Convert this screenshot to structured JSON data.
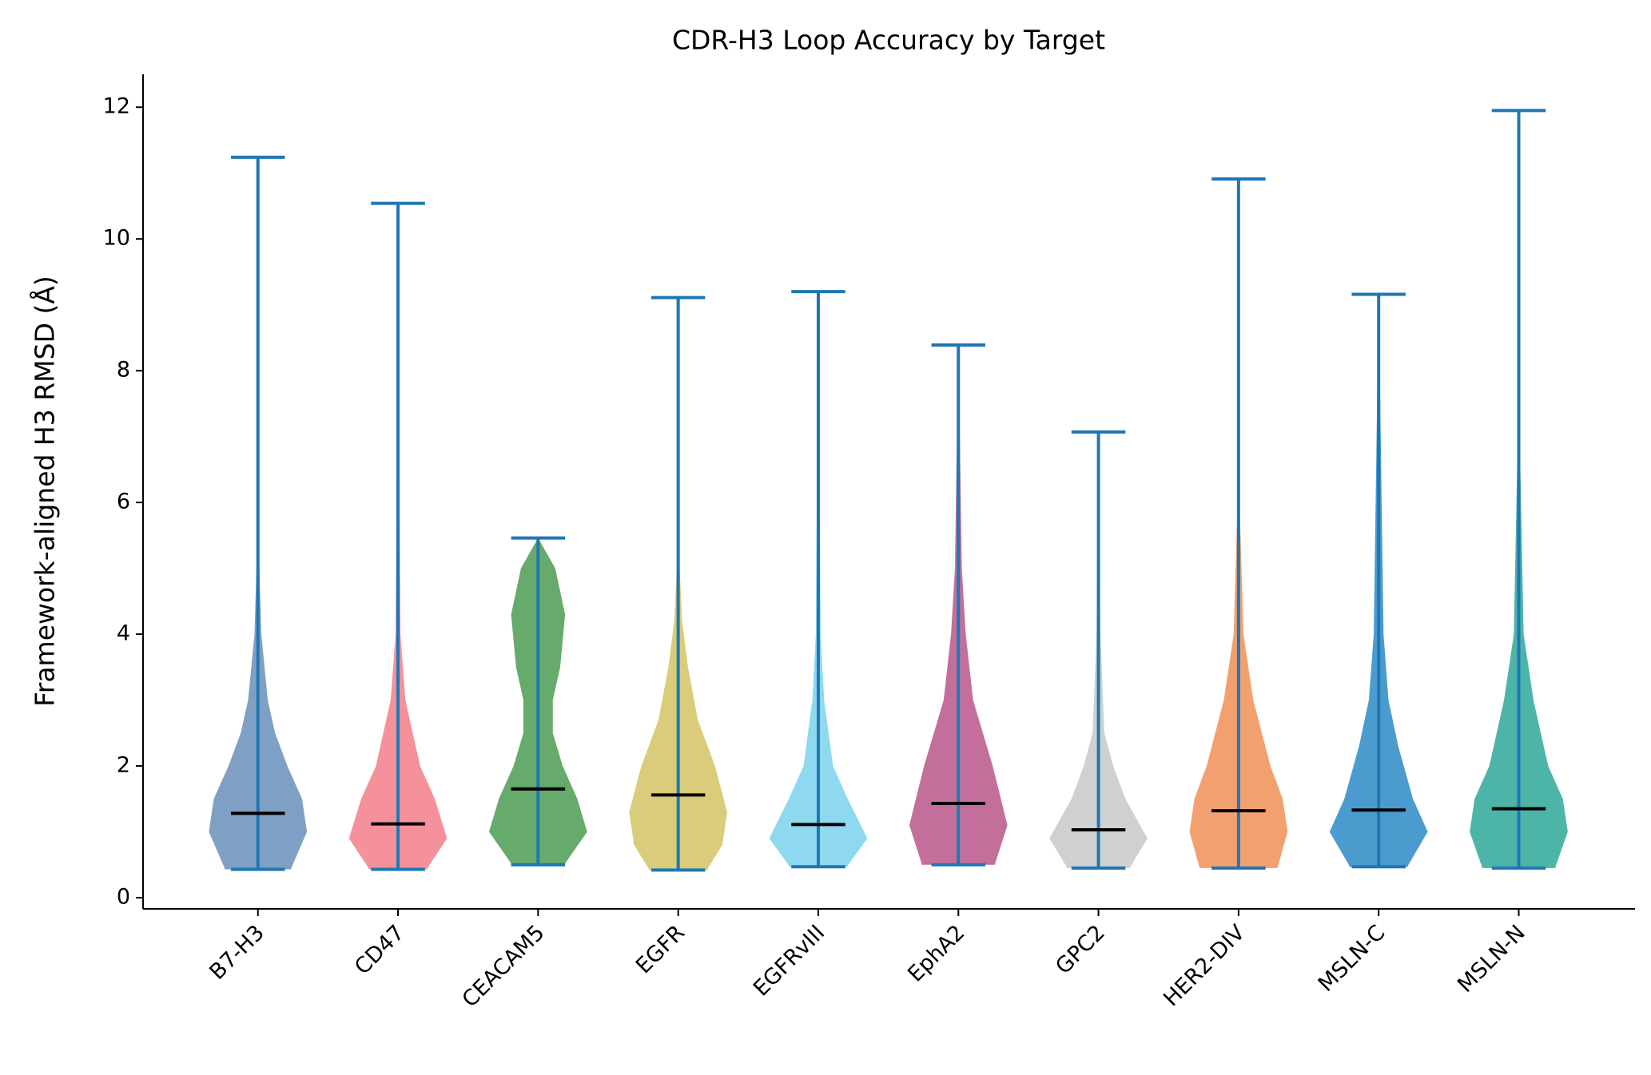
{
  "chart_data": {
    "type": "violin",
    "title": "CDR-H3 Loop Accuracy by Target",
    "y_label": "Framework-aligned H3 RMSD (Å)",
    "categories": [
      "B7-H3",
      "CD47",
      "CEACAM5",
      "EGFR",
      "EGFRvIII",
      "EphA2",
      "GPC2",
      "HER2-DIV",
      "MSLN-C",
      "MSLN-N"
    ],
    "colors": [
      "#7fa0c4",
      "#f4919b",
      "#66aa6c",
      "#dacc7a",
      "#8fd9f0",
      "#c46f9b",
      "#d0d0d0",
      "#f3a070",
      "#4b9bcf",
      "#4db5a8"
    ],
    "min": [
      0.43,
      0.43,
      0.5,
      0.42,
      0.47,
      0.5,
      0.45,
      0.45,
      0.47,
      0.45
    ],
    "max": [
      11.24,
      10.54,
      5.46,
      9.11,
      9.2,
      8.39,
      7.07,
      10.91,
      9.16,
      11.95
    ],
    "median": [
      1.28,
      1.12,
      1.65,
      1.56,
      1.11,
      1.43,
      1.03,
      1.32,
      1.33,
      1.35
    ],
    "profiles": [
      {
        "y": [
          0.45,
          1.0,
          1.5,
          2.0,
          2.5,
          3.0,
          4.0,
          5.0,
          7.0
        ],
        "w": [
          0.68,
          1.0,
          0.9,
          0.6,
          0.35,
          0.2,
          0.07,
          0.03,
          0.01
        ]
      },
      {
        "y": [
          0.45,
          0.9,
          1.5,
          2.0,
          3.0,
          4.0,
          7.0
        ],
        "w": [
          0.6,
          1.0,
          0.75,
          0.45,
          0.15,
          0.05,
          0.02
        ]
      },
      {
        "y": [
          0.52,
          1.0,
          1.5,
          2.0,
          2.5,
          3.0,
          3.5,
          4.3,
          5.0
        ],
        "w": [
          0.55,
          1.0,
          0.8,
          0.5,
          0.3,
          0.3,
          0.45,
          0.55,
          0.35
        ]
      },
      {
        "y": [
          0.44,
          0.8,
          1.3,
          2.0,
          2.7,
          3.5,
          4.2,
          5.0
        ],
        "w": [
          0.6,
          0.9,
          1.0,
          0.75,
          0.4,
          0.2,
          0.08,
          0.03
        ]
      },
      {
        "y": [
          0.49,
          0.9,
          1.5,
          2.0,
          3.0,
          4.0
        ],
        "w": [
          0.6,
          1.0,
          0.6,
          0.3,
          0.12,
          0.05
        ]
      },
      {
        "y": [
          0.52,
          1.1,
          2.0,
          3.0,
          4.0,
          5.0,
          7.0
        ],
        "w": [
          0.75,
          1.0,
          0.7,
          0.3,
          0.15,
          0.07,
          0.03
        ]
      },
      {
        "y": [
          0.47,
          0.9,
          1.5,
          2.0,
          2.5,
          4.0
        ],
        "w": [
          0.65,
          1.0,
          0.55,
          0.3,
          0.12,
          0.04
        ]
      },
      {
        "y": [
          0.47,
          1.0,
          1.5,
          2.0,
          3.0,
          4.0,
          6.0
        ],
        "w": [
          0.8,
          1.0,
          0.9,
          0.65,
          0.3,
          0.1,
          0.02
        ]
      },
      {
        "y": [
          0.49,
          1.0,
          1.5,
          2.3,
          3.0,
          4.0
        ],
        "w": [
          0.6,
          1.0,
          0.7,
          0.4,
          0.2,
          0.1
        ]
      },
      {
        "y": [
          0.47,
          1.0,
          1.5,
          2.0,
          3.0,
          4.0,
          7.0
        ],
        "w": [
          0.75,
          1.0,
          0.9,
          0.6,
          0.3,
          0.1,
          0.02
        ]
      }
    ],
    "width": 0.7,
    "line_color": "#1f77b4",
    "median_color": "#000000",
    "xlim": [
      0.18,
      10.83
    ],
    "ylim": [
      -0.17,
      12.5
    ],
    "yticks": [
      0,
      2,
      4,
      6,
      8,
      10,
      12
    ]
  }
}
